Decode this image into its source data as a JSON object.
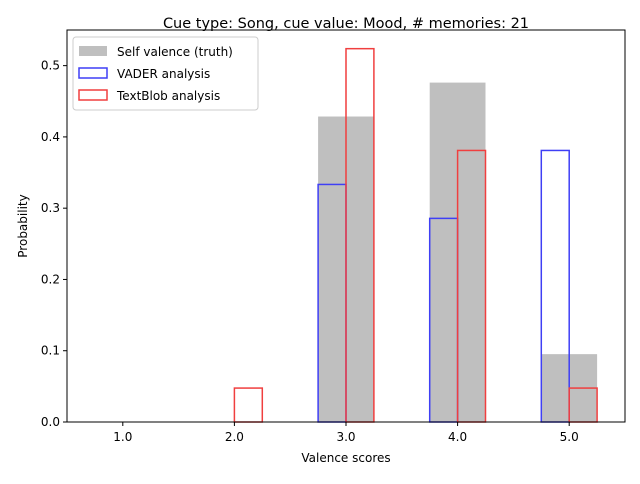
{
  "chart_data": {
    "type": "bar",
    "title": "Cue type: Song, cue value: Mood, # memories: 21",
    "xlabel": "Valence scores",
    "ylabel": "Probability",
    "categories": [
      "1.0",
      "2.0",
      "3.0",
      "4.0",
      "5.0"
    ],
    "x": [
      1,
      2,
      3,
      4,
      5
    ],
    "xlim": [
      0.5,
      5.5
    ],
    "ylim": [
      0,
      0.55
    ],
    "yticks": [
      "0.0",
      "0.1",
      "0.2",
      "0.3",
      "0.4",
      "0.5"
    ],
    "legend_position": "top-left",
    "grid": false,
    "series": [
      {
        "name": "Self valence (truth)",
        "style": "filled",
        "color": "#bfbfbf",
        "values": [
          0.0,
          0.0,
          0.4286,
          0.4762,
          0.0952
        ]
      },
      {
        "name": "VADER analysis",
        "style": "outline",
        "color": "#3f3ff5",
        "values": [
          0.0,
          0.0,
          0.3333,
          0.2857,
          0.381
        ]
      },
      {
        "name": "TextBlob analysis",
        "style": "outline",
        "color": "#f03f3f",
        "values": [
          0.0,
          0.0476,
          0.5238,
          0.381,
          0.0476
        ]
      }
    ]
  }
}
